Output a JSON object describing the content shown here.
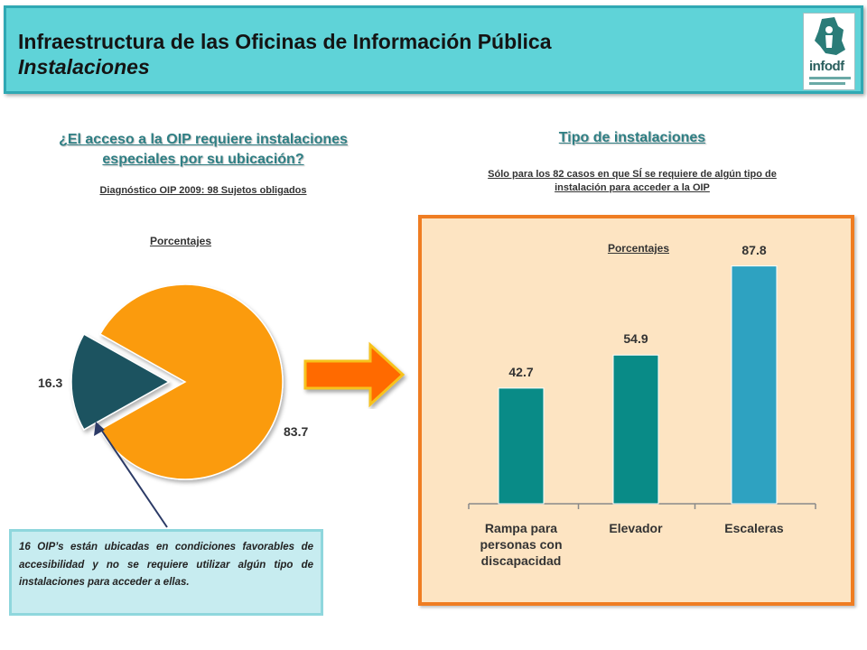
{
  "header": {
    "title_line1": "Infraestructura de las Oficinas de Información Pública",
    "title_line2": "Instalaciones",
    "logo_text": "infodf"
  },
  "left": {
    "question_line1": "¿El acceso a la OIP requiere instalaciones",
    "question_line2": "especiales por su ubicación?",
    "subtitle": "Diagnóstico OIP 2009: 98 Sujetos obligados"
  },
  "right": {
    "title": "Tipo de instalaciones",
    "subtitle_line1": "Sólo para los 82 casos en que SÍ se requiere de algún tipo de",
    "subtitle_line2": "instalación para acceder a la OIP"
  },
  "callout": {
    "text": "16 OIP’s están ubicadas en condiciones favorables de accesibilidad y no se requiere utilizar algún tipo de instalaciones para acceder a ellas."
  },
  "colors": {
    "header_bg": "#5fd3d8",
    "pie_orange": "#fb9b0a",
    "pie_teal": "#1a5261",
    "bar_teal": "#098b87",
    "bar_blue": "#2ea2c1",
    "panel_bg": "#fde4c2",
    "panel_border": "#ef7d22",
    "arrow_fill": "#ff6a00"
  },
  "chart_data": [
    {
      "type": "pie",
      "title": "Porcentajes",
      "labels": [
        "83.7",
        "16.3"
      ],
      "values": [
        83.7,
        16.3
      ],
      "colors": [
        "#fb9b0a",
        "#1a5261"
      ]
    },
    {
      "type": "bar",
      "title": "Porcentajes",
      "categories": [
        "Rampa para personas con discapacidad",
        "Elevador",
        "Escaleras"
      ],
      "category_lines": [
        [
          "Rampa para",
          "personas con",
          "discapacidad"
        ],
        [
          "Elevador"
        ],
        [
          "Escaleras"
        ]
      ],
      "values": [
        42.7,
        54.9,
        87.8
      ],
      "value_labels": [
        "42.7",
        "54.9",
        "87.8"
      ],
      "colors": [
        "#098b87",
        "#098b87",
        "#2ea2c1"
      ],
      "ylim": [
        0,
        100
      ]
    }
  ]
}
